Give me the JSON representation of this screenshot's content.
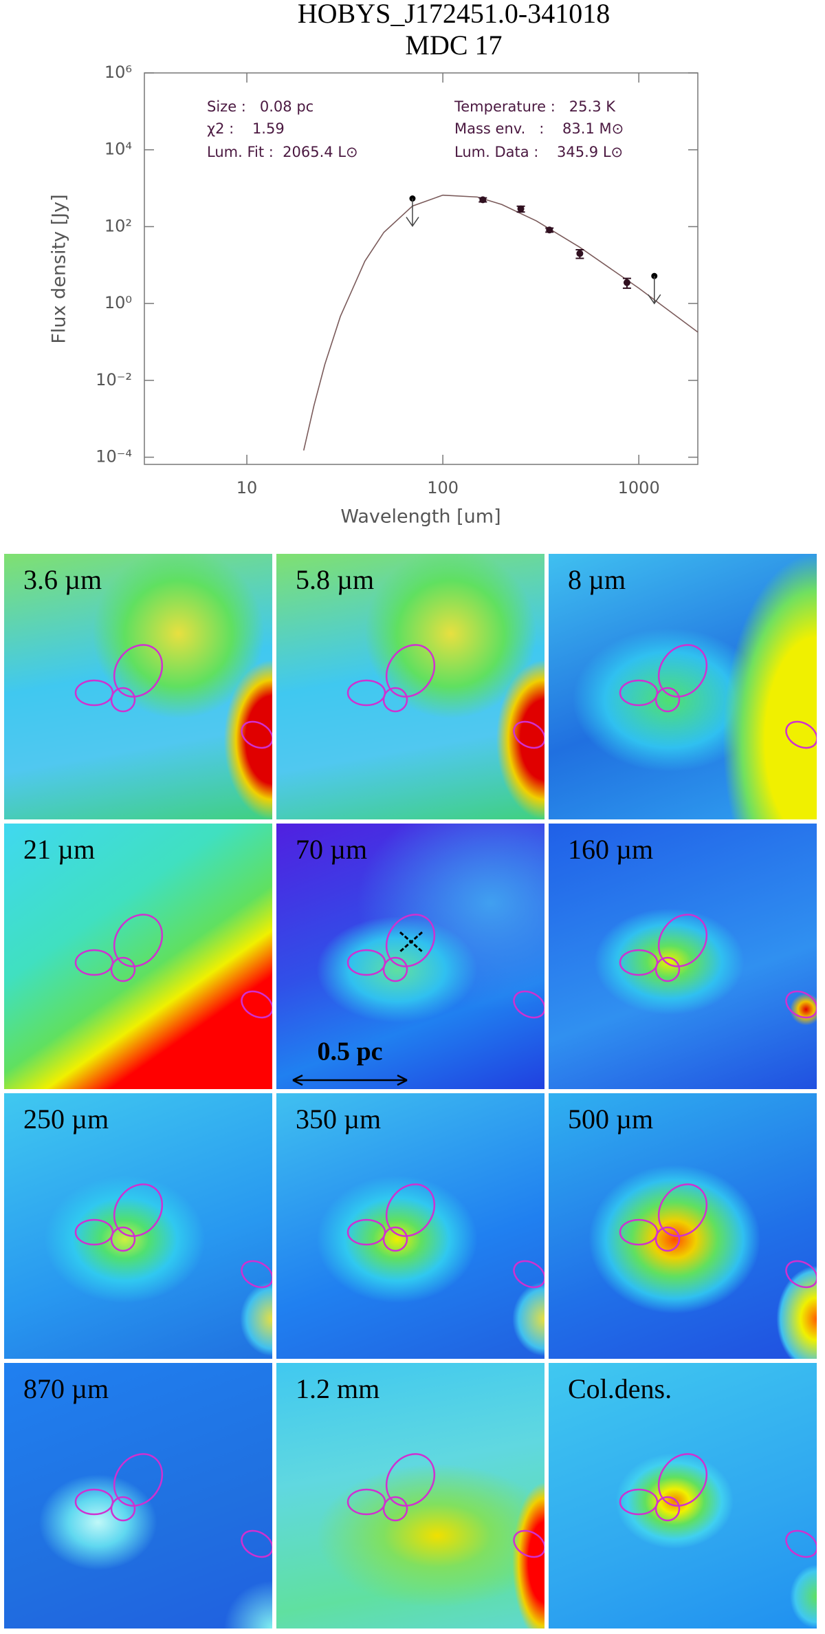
{
  "chart_data": {
    "type": "sed",
    "title": [
      "HOBYS_J172451.0-341018",
      "MDC 17"
    ],
    "x_label": "Wavelength [um]",
    "y_label": "Flux density [Jy]",
    "xscale": "log",
    "yscale": "log",
    "xlim": [
      3,
      2000
    ],
    "ylim": [
      6.5e-05,
      1000000
    ],
    "xticks": [
      10,
      100,
      1000
    ],
    "yticks": [
      {
        "value": 0.0001,
        "label": "10⁻⁴"
      },
      {
        "value": 0.01,
        "label": "10⁻²"
      },
      {
        "value": 1,
        "label": "10⁰"
      },
      {
        "value": 100,
        "label": "10²"
      },
      {
        "value": 10000,
        "label": "10⁴"
      },
      {
        "value": 1000000,
        "label": "10⁶"
      }
    ],
    "annotations": [
      "Size :   0.08 pc",
      "χ2 :    1.59",
      "Lum. Fit :  2065.4 L⊙",
      "Temperature :   25.3 K",
      "Mass env.   :    83.1 M⊙",
      "Lum. Data :    345.9 L⊙"
    ],
    "points": {
      "x": [
        160,
        250,
        350,
        500,
        870
      ],
      "values": [
        500,
        290,
        82,
        20,
        3.5
      ],
      "errors": [
        60,
        50,
        10,
        5,
        1
      ],
      "color": "#301020"
    },
    "upper_limits": {
      "x": [
        70,
        1200
      ],
      "values": [
        540,
        5.2
      ],
      "color": "#000000"
    },
    "model": {
      "x": [
        19.5,
        22,
        25,
        30,
        40,
        50,
        70,
        100,
        150,
        200,
        300,
        500,
        1000,
        2000
      ],
      "values": [
        0.00015,
        0.0022,
        0.026,
        0.46,
        12.6,
        71,
        344,
        660,
        590,
        376,
        141,
        29,
        2.5,
        0.18
      ],
      "color": "#7a5a5a"
    }
  },
  "panels": [
    {
      "label": "3.6 µm"
    },
    {
      "label": "5.8 µm"
    },
    {
      "label": "8 µm"
    },
    {
      "label": "21 µm"
    },
    {
      "label": "70 µm",
      "scale_bar": "0.5 pc"
    },
    {
      "label": "160 µm"
    },
    {
      "label": "250 µm"
    },
    {
      "label": "350 µm"
    },
    {
      "label": "500 µm"
    },
    {
      "label": "870 µm"
    },
    {
      "label": "1.2 mm"
    },
    {
      "label": "Col.dens."
    }
  ]
}
